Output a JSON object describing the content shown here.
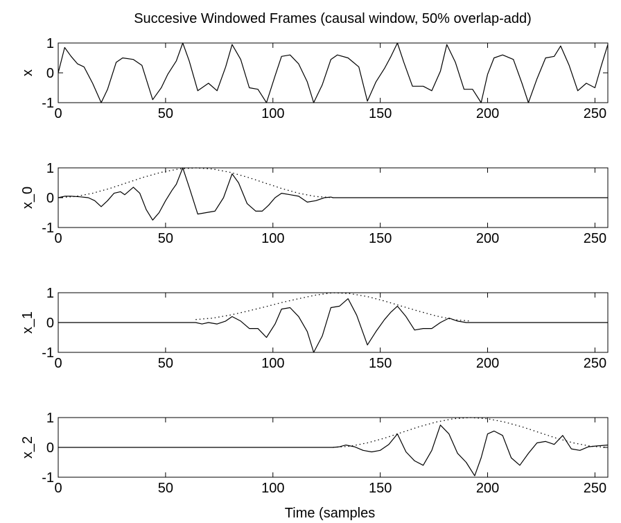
{
  "figure": {
    "title": "Succesive Windowed Frames (causal window, 50% overlap-add)",
    "xlabel": "Time (samples"
  },
  "chart_data": [
    {
      "type": "line",
      "ylabel": "x",
      "xlim": [
        0,
        256
      ],
      "ylim": [
        -1,
        1
      ],
      "x_ticks": [
        0,
        50,
        100,
        150,
        200,
        250
      ],
      "y_ticks": [
        -1,
        0,
        1
      ],
      "grid": false,
      "series": [
        {
          "style": "solid",
          "color": "#000000",
          "x": [
            0,
            3,
            6,
            9,
            12,
            16,
            20,
            23,
            27,
            30,
            35,
            39,
            44,
            48,
            51,
            55,
            58,
            61,
            65,
            70,
            74,
            78,
            81,
            85,
            89,
            93,
            97,
            101,
            104,
            108,
            112,
            116,
            119,
            123,
            127,
            130,
            135,
            140,
            144,
            148,
            152,
            155,
            158,
            161,
            165,
            170,
            174,
            178,
            181,
            185,
            189,
            193,
            197,
            200,
            203,
            207,
            212,
            216,
            219,
            223,
            227,
            231,
            234,
            238,
            242,
            246,
            250,
            253,
            256
          ],
          "y": [
            0,
            0.85,
            0.55,
            0.3,
            0.2,
            -0.35,
            -1,
            -0.55,
            0.35,
            0.5,
            0.45,
            0.25,
            -0.9,
            -0.5,
            -0.05,
            0.4,
            1,
            0.4,
            -0.6,
            -0.35,
            -0.6,
            0.2,
            0.95,
            0.45,
            -0.5,
            -0.55,
            -1,
            -0.1,
            0.55,
            0.6,
            0.3,
            -0.3,
            -1,
            -0.4,
            0.45,
            0.6,
            0.5,
            0.2,
            -0.95,
            -0.3,
            0.15,
            0.55,
            1,
            0.35,
            -0.45,
            -0.45,
            -0.6,
            0.05,
            0.95,
            0.35,
            -0.55,
            -0.55,
            -1,
            -0.05,
            0.5,
            0.6,
            0.45,
            -0.35,
            -1,
            -0.2,
            0.5,
            0.55,
            0.9,
            0.25,
            -0.6,
            -0.35,
            -0.5,
            0.25,
            0.95
          ]
        },
        {
          "style": "dotted",
          "color": "#000000",
          "x": [],
          "y": []
        }
      ]
    },
    {
      "type": "line",
      "ylabel": "x_0",
      "xlim": [
        0,
        256
      ],
      "ylim": [
        -1,
        1
      ],
      "x_ticks": [
        0,
        50,
        100,
        150,
        200,
        250
      ],
      "y_ticks": [
        -1,
        0,
        1
      ],
      "grid": false,
      "series": [
        {
          "style": "solid",
          "color": "#000000",
          "x": [
            0,
            3,
            6,
            10,
            14,
            17,
            20,
            23,
            26,
            29,
            31,
            35,
            38,
            41,
            44,
            47,
            50,
            53,
            55,
            58,
            61,
            65,
            69,
            73,
            77,
            81,
            84,
            88,
            92,
            95,
            98,
            101,
            104,
            108,
            112,
            116,
            120,
            124,
            127,
            128,
            256
          ],
          "y": [
            0,
            0.05,
            0.05,
            0.03,
            0,
            -0.1,
            -0.3,
            -0.1,
            0.15,
            0.2,
            0.1,
            0.35,
            0.15,
            -0.4,
            -0.75,
            -0.5,
            -0.1,
            0.25,
            0.45,
            1,
            0.35,
            -0.55,
            -0.5,
            -0.45,
            0,
            0.8,
            0.5,
            -0.2,
            -0.45,
            -0.45,
            -0.25,
            0,
            0.15,
            0.1,
            0.05,
            -0.15,
            -0.1,
            0,
            0.02,
            0,
            0
          ]
        },
        {
          "style": "dotted",
          "color": "#000000",
          "x": [
            0,
            8,
            16,
            24,
            32,
            40,
            48,
            56,
            64,
            72,
            80,
            88,
            96,
            104,
            112,
            120,
            128
          ],
          "y": [
            0,
            0.04,
            0.15,
            0.31,
            0.5,
            0.69,
            0.85,
            0.96,
            1,
            0.96,
            0.85,
            0.69,
            0.5,
            0.31,
            0.15,
            0.04,
            0
          ]
        }
      ]
    },
    {
      "type": "line",
      "ylabel": "x_1",
      "xlim": [
        0,
        256
      ],
      "ylim": [
        -1,
        1
      ],
      "x_ticks": [
        0,
        50,
        100,
        150,
        200,
        250
      ],
      "y_ticks": [
        -1,
        0,
        1
      ],
      "grid": false,
      "series": [
        {
          "style": "solid",
          "color": "#000000",
          "x": [
            0,
            64,
            67,
            70,
            74,
            78,
            81,
            85,
            89,
            93,
            97,
            101,
            104,
            108,
            112,
            116,
            119,
            123,
            127,
            131,
            135,
            139,
            144,
            148,
            152,
            155,
            158,
            162,
            166,
            170,
            174,
            178,
            182,
            186,
            190,
            194,
            256
          ],
          "y": [
            0,
            0,
            -0.05,
            0,
            -0.05,
            0.05,
            0.2,
            0.05,
            -0.2,
            -0.2,
            -0.5,
            -0.05,
            0.45,
            0.5,
            0.2,
            -0.3,
            -1,
            -0.45,
            0.5,
            0.55,
            0.8,
            0.25,
            -0.75,
            -0.3,
            0.1,
            0.35,
            0.55,
            0.2,
            -0.25,
            -0.2,
            -0.2,
            0,
            0.15,
            0.05,
            0,
            0,
            0
          ]
        },
        {
          "style": "dotted",
          "color": "#000000",
          "x": [
            64,
            72,
            80,
            88,
            96,
            104,
            112,
            120,
            128,
            136,
            144,
            152,
            160,
            168,
            176,
            184,
            192
          ],
          "y": [
            0.1,
            0.15,
            0.25,
            0.38,
            0.52,
            0.67,
            0.8,
            0.92,
            1,
            0.97,
            0.87,
            0.72,
            0.55,
            0.38,
            0.22,
            0.1,
            0.05
          ]
        }
      ]
    },
    {
      "type": "line",
      "ylabel": "x_2",
      "xlim": [
        0,
        256
      ],
      "ylim": [
        -1,
        1
      ],
      "x_ticks": [
        0,
        50,
        100,
        150,
        200,
        250
      ],
      "y_ticks": [
        -1,
        0,
        1
      ],
      "grid": false,
      "series": [
        {
          "style": "solid",
          "color": "#000000",
          "x": [
            0,
            128,
            131,
            134,
            138,
            142,
            146,
            150,
            154,
            158,
            162,
            166,
            170,
            174,
            178,
            182,
            186,
            190,
            194,
            197,
            200,
            203,
            207,
            211,
            215,
            219,
            223,
            227,
            231,
            235,
            239,
            243,
            247,
            251,
            256
          ],
          "y": [
            0,
            0,
            0.02,
            0.08,
            0.02,
            -0.1,
            -0.15,
            -0.1,
            0.1,
            0.45,
            -0.15,
            -0.45,
            -0.6,
            -0.1,
            0.75,
            0.45,
            -0.2,
            -0.5,
            -0.95,
            -0.35,
            0.45,
            0.55,
            0.4,
            -0.35,
            -0.6,
            -0.2,
            0.15,
            0.2,
            0.1,
            0.4,
            -0.05,
            -0.1,
            0.02,
            0.05,
            0.08
          ]
        },
        {
          "style": "dotted",
          "color": "#000000",
          "x": [
            128,
            136,
            144,
            152,
            160,
            168,
            176,
            184,
            192,
            200,
            208,
            216,
            224,
            232,
            240,
            248,
            256
          ],
          "y": [
            0,
            0.04,
            0.15,
            0.31,
            0.5,
            0.69,
            0.85,
            0.96,
            1,
            0.96,
            0.85,
            0.69,
            0.5,
            0.31,
            0.15,
            0.04,
            0
          ]
        }
      ]
    }
  ]
}
